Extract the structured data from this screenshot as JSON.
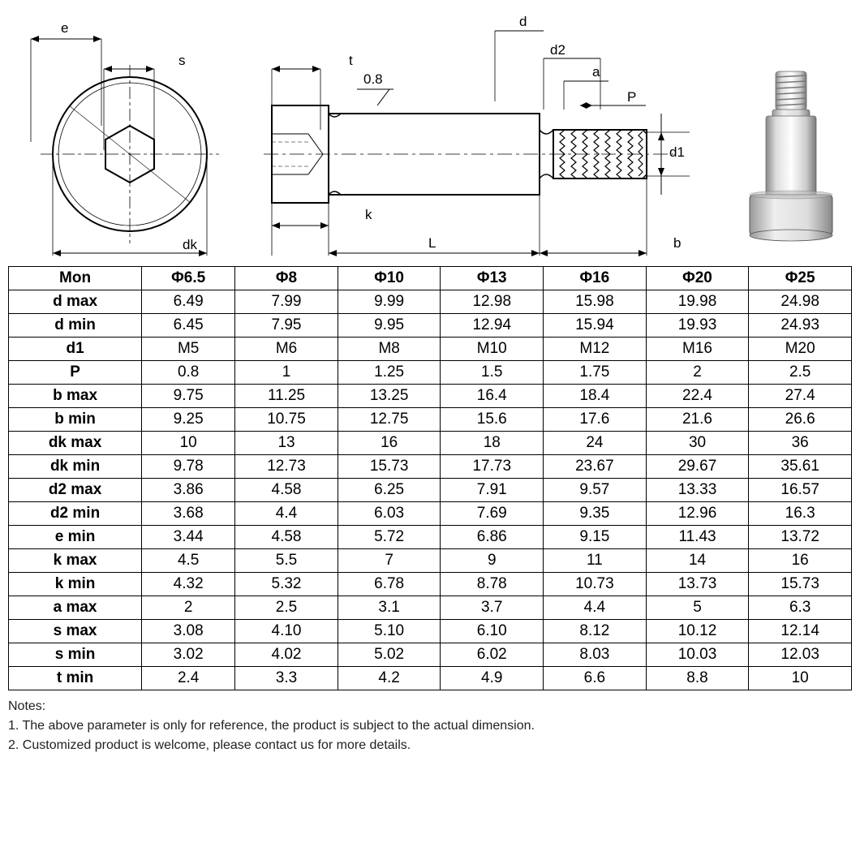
{
  "diagram": {
    "labels": {
      "e": "e",
      "s": "s",
      "dk": "dk",
      "t": "t",
      "surface": "0.8",
      "k": "k",
      "L": "L",
      "d": "d",
      "d2": "d2",
      "a": "a",
      "P": "P",
      "d1": "d1",
      "b": "b"
    }
  },
  "table": {
    "type": "table",
    "background_color": "#ffffff",
    "border_color": "#000000",
    "font_size": 19,
    "columns": [
      "Mon",
      "Φ6.5",
      "Φ8",
      "Φ10",
      "Φ13",
      "Φ16",
      "Φ20",
      "Φ25"
    ],
    "rows": [
      [
        "d max",
        "6.49",
        "7.99",
        "9.99",
        "12.98",
        "15.98",
        "19.98",
        "24.98"
      ],
      [
        "d min",
        "6.45",
        "7.95",
        "9.95",
        "12.94",
        "15.94",
        "19.93",
        "24.93"
      ],
      [
        "d1",
        "M5",
        "M6",
        "M8",
        "M10",
        "M12",
        "M16",
        "M20"
      ],
      [
        "P",
        "0.8",
        "1",
        "1.25",
        "1.5",
        "1.75",
        "2",
        "2.5"
      ],
      [
        "b max",
        "9.75",
        "11.25",
        "13.25",
        "16.4",
        "18.4",
        "22.4",
        "27.4"
      ],
      [
        "b min",
        "9.25",
        "10.75",
        "12.75",
        "15.6",
        "17.6",
        "21.6",
        "26.6"
      ],
      [
        "dk max",
        "10",
        "13",
        "16",
        "18",
        "24",
        "30",
        "36"
      ],
      [
        "dk min",
        "9.78",
        "12.73",
        "15.73",
        "17.73",
        "23.67",
        "29.67",
        "35.61"
      ],
      [
        "d2 max",
        "3.86",
        "4.58",
        "6.25",
        "7.91",
        "9.57",
        "13.33",
        "16.57"
      ],
      [
        "d2 min",
        "3.68",
        "4.4",
        "6.03",
        "7.69",
        "9.35",
        "12.96",
        "16.3"
      ],
      [
        "e min",
        "3.44",
        "4.58",
        "5.72",
        "6.86",
        "9.15",
        "11.43",
        "13.72"
      ],
      [
        "k max",
        "4.5",
        "5.5",
        "7",
        "9",
        "11",
        "14",
        "16"
      ],
      [
        "k min",
        "4.32",
        "5.32",
        "6.78",
        "8.78",
        "10.73",
        "13.73",
        "15.73"
      ],
      [
        "a max",
        "2",
        "2.5",
        "3.1",
        "3.7",
        "4.4",
        "5",
        "6.3"
      ],
      [
        "s max",
        "3.08",
        "4.10",
        "5.10",
        "6.10",
        "8.12",
        "10.12",
        "12.14"
      ],
      [
        "s min",
        "3.02",
        "4.02",
        "5.02",
        "6.02",
        "8.03",
        "10.03",
        "12.03"
      ],
      [
        "t min",
        "2.4",
        "3.3",
        "4.2",
        "4.9",
        "6.6",
        "8.8",
        "10"
      ]
    ]
  },
  "notes": {
    "title": "Notes:",
    "line1": "1. The above parameter is only for reference, the product is subject to the actual dimension.",
    "line2": "2. Customized product is welcome, please contact us for more details."
  }
}
